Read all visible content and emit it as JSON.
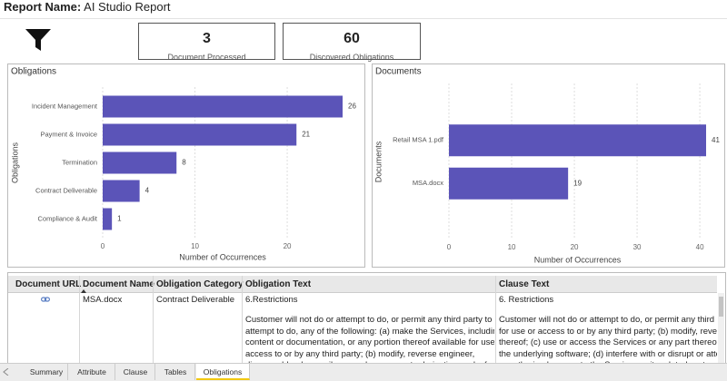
{
  "header": {
    "label": "Report Name:",
    "title": "AI Studio Report"
  },
  "cards": [
    {
      "value": 3,
      "label": "Document Processed"
    },
    {
      "value": 60,
      "label": "Discovered Obligations"
    }
  ],
  "chart_data": [
    {
      "type": "bar",
      "orientation": "horizontal",
      "title": "Obligations",
      "categories": [
        "Incident Management",
        "Payment & Invoice",
        "Termination",
        "Contract Deliverable",
        "Compliance & Audit"
      ],
      "values": [
        26,
        21,
        8,
        4,
        1
      ],
      "color": "#5b54b8",
      "xlim": [
        0,
        26
      ],
      "xticks": [
        0,
        10,
        20
      ],
      "x_label": "Number of Occurrences",
      "y_label": "Obligations",
      "grid": true
    },
    {
      "type": "bar",
      "orientation": "horizontal",
      "title": "Documents",
      "categories": [
        "Retail MSA 1.pdf",
        "MSA.docx"
      ],
      "values": [
        41,
        19
      ],
      "color": "#5b54b8",
      "xlim": [
        0,
        41
      ],
      "xticks": [
        0,
        10,
        20,
        30,
        40
      ],
      "x_label": "Number of Occurrences",
      "y_label": "Documents",
      "grid": true
    }
  ],
  "table": {
    "columns": [
      "Document URL",
      "Document Name",
      "Obligation Category",
      "Obligation Text",
      "Clause Text"
    ],
    "rows": [
      {
        "document_name": "MSA.docx",
        "obligation_category": "Contract Deliverable",
        "obligation_text": {
          "heading": "6.Restrictions",
          "lines": [
            "Customer will not do or attempt to do, or permit any third party to do or",
            "attempt to do, any of the following: (a) make the Services, including its",
            "content or documentation, or any portion thereof available for use or",
            "access to or by any third party; (b) modify, reverse engineer,",
            "disassemble, decompile, reproduce or create derivative works from or in"
          ]
        },
        "clause_text": {
          "heading": "6. Restrictions",
          "lines": [
            "Customer will not do or attempt to do, or permit any third party t",
            "for use or access to or by any third party; (b) modify, reverse engi",
            "thereof; (c) use or access the Services or any part thereof in",
            "the underlying software; (d) interfere with or disrupt or attempt to",
            "unauthorized access to the Services or its related systems or netw"
          ]
        }
      }
    ]
  },
  "tabs": [
    "Summary",
    "Attribute",
    "Clause",
    "Tables",
    "Obligations"
  ]
}
